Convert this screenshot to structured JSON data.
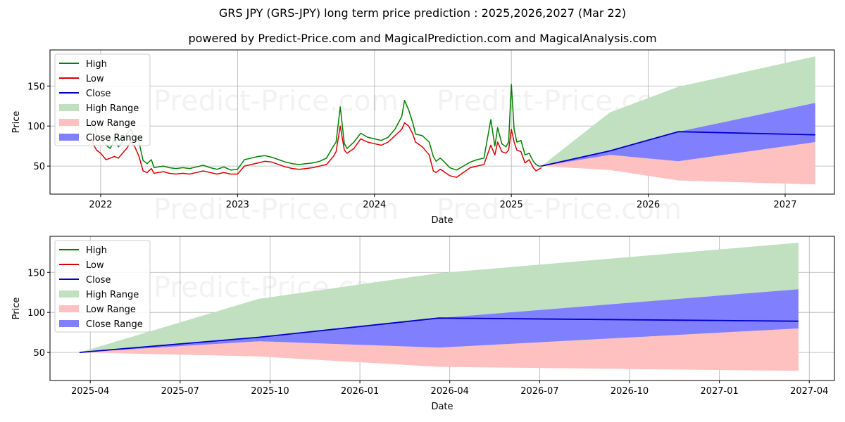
{
  "title": "GRS JPY (GRS-JPY) long term price prediction : 2025,2026,2027 (Mar 22)",
  "subtitle": "powered by Predict-Price.com and MagicalPrediction.com and MagicalAnalysis.com",
  "watermark": "Predict-Price.com",
  "colors": {
    "high": "#008000",
    "low": "#dd0000",
    "close": "#0000cc",
    "high_range": "#c0e0c0",
    "low_range": "#ffc0c0",
    "close_range": "#8080ff",
    "grid": "#b0b0b0"
  },
  "legend": [
    {
      "label": "High",
      "kind": "line",
      "color": "#008000"
    },
    {
      "label": "Low",
      "kind": "line",
      "color": "#dd0000"
    },
    {
      "label": "Close",
      "kind": "line",
      "color": "#0000cc"
    },
    {
      "label": "High Range",
      "kind": "patch",
      "color": "#c0e0c0"
    },
    {
      "label": "Low Range",
      "kind": "patch",
      "color": "#ffc0c0"
    },
    {
      "label": "Close Range",
      "kind": "patch",
      "color": "#8080ff"
    }
  ],
  "chart_data": [
    {
      "type": "line",
      "name": "history-and-forecast",
      "xlabel": "Date",
      "ylabel": "Price",
      "xlim": [
        2021.63,
        2027.36
      ],
      "ylim": [
        15,
        195
      ],
      "xticks": [
        2022,
        2023,
        2024,
        2025,
        2026,
        2027
      ],
      "xtick_labels": [
        "2022",
        "2023",
        "2024",
        "2025",
        "2026",
        "2027"
      ],
      "yticks": [
        50,
        100,
        150
      ],
      "ytick_labels": [
        "50",
        "100",
        "150"
      ],
      "history": {
        "x": [
          2021.93,
          2021.95,
          2021.97,
          2022.0,
          2022.04,
          2022.07,
          2022.1,
          2022.13,
          2022.16,
          2022.19,
          2022.22,
          2022.25,
          2022.28,
          2022.31,
          2022.34,
          2022.37,
          2022.39,
          2022.42,
          2022.46,
          2022.5,
          2022.55,
          2022.6,
          2022.65,
          2022.7,
          2022.75,
          2022.8,
          2022.85,
          2022.9,
          2022.95,
          2023.0,
          2023.05,
          2023.1,
          2023.15,
          2023.2,
          2023.25,
          2023.3,
          2023.35,
          2023.4,
          2023.45,
          2023.5,
          2023.55,
          2023.6,
          2023.65,
          2023.7,
          2023.72,
          2023.75,
          2023.78,
          2023.8,
          2023.85,
          2023.9,
          2023.95,
          2024.0,
          2024.05,
          2024.1,
          2024.15,
          2024.2,
          2024.22,
          2024.25,
          2024.28,
          2024.3,
          2024.35,
          2024.4,
          2024.43,
          2024.45,
          2024.48,
          2024.5,
          2024.55,
          2024.6,
          2024.65,
          2024.7,
          2024.75,
          2024.8,
          2024.85,
          2024.88,
          2024.9,
          2024.93,
          2024.96,
          2024.98,
          2025.0,
          2025.02,
          2025.04,
          2025.07,
          2025.1,
          2025.13,
          2025.16,
          2025.18,
          2025.2,
          2025.22
        ],
        "high": [
          98,
          104,
          90,
          84,
          76,
          72,
          82,
          74,
          80,
          90,
          96,
          86,
          80,
          57,
          53,
          58,
          48,
          49,
          50,
          48,
          47,
          48,
          47,
          49,
          51,
          48,
          46,
          49,
          45,
          46,
          58,
          60,
          62,
          63,
          61,
          58,
          55,
          53,
          52,
          53,
          54,
          56,
          60,
          75,
          80,
          124,
          78,
          72,
          80,
          91,
          86,
          84,
          82,
          86,
          96,
          112,
          132,
          120,
          104,
          90,
          88,
          80,
          62,
          56,
          60,
          57,
          48,
          45,
          50,
          55,
          58,
          60,
          108,
          75,
          98,
          78,
          74,
          80,
          152,
          96,
          80,
          82,
          64,
          66,
          56,
          52,
          50,
          50
        ],
        "low": [
          86,
          76,
          70,
          66,
          58,
          60,
          62,
          60,
          66,
          72,
          80,
          74,
          62,
          44,
          42,
          47,
          41,
          42,
          43,
          41,
          40,
          41,
          40,
          42,
          44,
          42,
          40,
          42,
          40,
          40,
          50,
          52,
          54,
          56,
          55,
          52,
          49,
          47,
          46,
          47,
          48,
          50,
          52,
          62,
          68,
          100,
          70,
          66,
          72,
          84,
          80,
          78,
          76,
          80,
          88,
          96,
          104,
          100,
          90,
          80,
          74,
          64,
          44,
          42,
          46,
          44,
          38,
          36,
          42,
          48,
          50,
          52,
          76,
          64,
          80,
          68,
          66,
          70,
          96,
          80,
          70,
          68,
          54,
          58,
          48,
          44,
          46,
          48
        ]
      },
      "forecast": {
        "x": [
          2025.22,
          2025.72,
          2026.22,
          2027.22
        ],
        "close": [
          50,
          69,
          93,
          89
        ],
        "high_upper": [
          50,
          117,
          149,
          187
        ],
        "high_lower": [
          50,
          69,
          93,
          129
        ],
        "close_upper": [
          50,
          69,
          93,
          129
        ],
        "close_lower": [
          50,
          64,
          56,
          80
        ],
        "low_upper": [
          50,
          64,
          56,
          80
        ],
        "low_lower": [
          50,
          45,
          32,
          27
        ]
      }
    },
    {
      "type": "line",
      "name": "forecast-zoom",
      "xlabel": "Date",
      "ylabel": "Price",
      "xlim": [
        2025.138,
        2027.32
      ],
      "ylim": [
        15,
        195
      ],
      "xticks": [
        2025.25,
        2025.5,
        2025.75,
        2026.0,
        2026.25,
        2026.5,
        2026.75,
        2027.0,
        2027.25
      ],
      "xtick_labels": [
        "2025-04",
        "2025-07",
        "2025-10",
        "2026-01",
        "2026-04",
        "2026-07",
        "2026-10",
        "2027-01",
        "2027-04"
      ],
      "yticks": [
        50,
        100,
        150
      ],
      "ytick_labels": [
        "50",
        "100",
        "150"
      ],
      "forecast": {
        "x": [
          2025.22,
          2025.72,
          2026.22,
          2027.22
        ],
        "close": [
          50,
          69,
          93,
          89
        ],
        "high_upper": [
          50,
          117,
          149,
          187
        ],
        "high_lower": [
          50,
          69,
          93,
          129
        ],
        "close_upper": [
          50,
          69,
          93,
          129
        ],
        "close_lower": [
          50,
          64,
          56,
          80
        ],
        "low_upper": [
          50,
          64,
          56,
          80
        ],
        "low_lower": [
          50,
          45,
          32,
          27
        ]
      }
    }
  ]
}
